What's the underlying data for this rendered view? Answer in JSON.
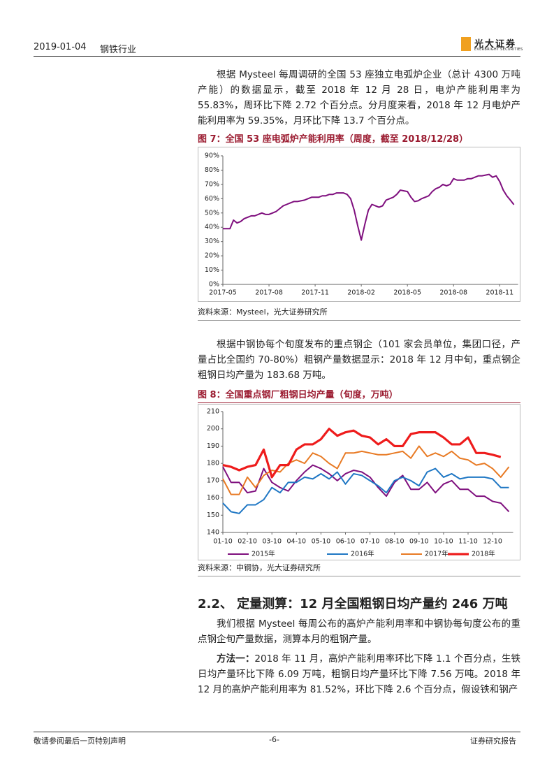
{
  "header": {
    "date": "2019-01-04",
    "industry": "钢铁行业",
    "brand": "光大证券",
    "brand_en": "EVERBRIGHT SECURITIES"
  },
  "paragraphs": [
    "根据 Mysteel 每周调研的全国 53 座独立电弧炉企业（总计 4300 万吨产能）的数据显示，截至 2018 年 12 月 28 日，电炉产能利用率为 55.83%，周环比下降 2.72 个百分点。分月度来看，2018 年 12 月电炉产能利用率为 59.35%，月环比下降 13.7 个百分点。",
    "根据中钢协每个旬度发布的重点钢企（101 家会员单位，集团口径，产量占比全国约 70-80%）粗钢产量数据显示：2018 年 12 月中旬，重点钢企粗钢日均产量为 183.68 万吨。",
    "我们根据 Mysteel 每周公布的高炉产能利用率和中钢协每旬度公布的重点钢企旬产量数据，测算本月的粗钢产量。"
  ],
  "section_heading": "2.2、 定量测算：12 月全国粗钢日均产量约 246 万吨",
  "method": {
    "lead": "方法一：",
    "text": "2018 年 11 月，高炉产能利用率环比下降 1.1 个百分点，生铁日均产量环比下降 6.09 万吨，粗钢日均产量环比下降 7.56 万吨。2018 年 12 月的高炉产能利用率为 81.52%，环比下降 2.6 个百分点，假设铁和钢产"
  },
  "chart_data": [
    {
      "type": "line",
      "title": "图 7：全国 53 座电弧炉产能利用率（周度，截至 2018/12/28）",
      "source": "资料来源：Mysteel，光大证券研究所",
      "color": "#7f0f7e",
      "categories": [
        "2017-05",
        null,
        null,
        null,
        null,
        null,
        null,
        null,
        null,
        null,
        null,
        null,
        null,
        "2017-08",
        null,
        null,
        null,
        null,
        null,
        null,
        null,
        null,
        null,
        null,
        null,
        null,
        "2017-11",
        null,
        null,
        null,
        null,
        null,
        null,
        null,
        null,
        null,
        null,
        null,
        null,
        "2018-02",
        null,
        null,
        null,
        null,
        null,
        null,
        null,
        null,
        null,
        null,
        null,
        null,
        "2018-05",
        null,
        null,
        null,
        null,
        null,
        null,
        null,
        null,
        null,
        null,
        null,
        null,
        "2018-08",
        null,
        null,
        null,
        null,
        null,
        null,
        null,
        null,
        null,
        null,
        null,
        null,
        "2018-11",
        null,
        null,
        null,
        null
      ],
      "values": [
        39,
        39,
        39,
        45,
        43,
        44,
        46,
        47,
        48,
        48,
        49,
        50,
        49,
        49,
        50,
        51,
        53,
        55,
        56,
        57,
        58,
        58,
        58.5,
        59,
        60,
        61,
        61,
        61,
        62,
        62,
        63,
        63,
        64,
        64,
        64,
        63,
        60,
        52,
        41,
        31,
        42,
        52,
        56,
        55,
        54,
        55,
        59,
        60,
        61,
        63,
        66,
        65.5,
        65,
        61,
        58,
        58.5,
        60,
        61,
        62,
        65,
        67,
        68,
        70,
        69,
        70,
        74,
        73,
        73,
        73,
        74,
        74,
        75,
        76,
        76,
        76.5,
        77,
        75,
        76,
        72,
        66,
        62,
        59,
        55.83
      ],
      "ylim": [
        0,
        90
      ],
      "yticks": [
        {
          "value": 0,
          "label": "0%"
        },
        {
          "value": 10,
          "label": "10%"
        },
        {
          "value": 20,
          "label": "20%"
        },
        {
          "value": 30,
          "label": "30%"
        },
        {
          "value": 40,
          "label": "40%"
        },
        {
          "value": 50,
          "label": "50%"
        },
        {
          "value": 60,
          "label": "60%"
        },
        {
          "value": 70,
          "label": "70%"
        },
        {
          "value": 80,
          "label": "80%"
        },
        {
          "value": 90,
          "label": "90%"
        }
      ],
      "grid": false
    },
    {
      "type": "line",
      "title": "图 8：全国重点钢厂粗钢日均产量（旬度，万吨）",
      "source": "资料来源：中钢协，光大证券研究所",
      "legend": "bottom",
      "categories": [
        "01-10",
        null,
        null,
        "02-10",
        null,
        null,
        "03-10",
        null,
        null,
        "04-10",
        null,
        null,
        "05-10",
        null,
        null,
        "06-10",
        null,
        null,
        "07-10",
        null,
        null,
        "08-10",
        null,
        null,
        "09-10",
        null,
        null,
        "10-10",
        null,
        null,
        "11-10",
        null,
        null,
        "12-10",
        null,
        null
      ],
      "series": [
        {
          "name": "2015年",
          "color": "#7f0f7e",
          "values": [
            178,
            169,
            169,
            163,
            164,
            177,
            169,
            166,
            164,
            170,
            175,
            179,
            177,
            174,
            170,
            174,
            176,
            175,
            172,
            166,
            161,
            169,
            173,
            165,
            165,
            169,
            163,
            168,
            170,
            165,
            165,
            161,
            161,
            158,
            157,
            152
          ]
        },
        {
          "name": "2016年",
          "color": "#1f77c4",
          "values": [
            157,
            152,
            151,
            156,
            156,
            159,
            166,
            163,
            169,
            169,
            172,
            171,
            174,
            171,
            175,
            168,
            174,
            173,
            170,
            167,
            163,
            170,
            172,
            170,
            167,
            175,
            177,
            172,
            174,
            171,
            172,
            172,
            172,
            171,
            166,
            166
          ]
        },
        {
          "name": "2017年",
          "color": "#e87a24",
          "values": [
            171,
            162,
            162,
            172,
            166,
            173,
            176,
            175,
            180,
            182,
            180,
            186,
            184,
            180,
            177,
            186,
            186,
            187,
            186,
            185,
            185,
            186,
            187,
            183,
            190,
            184,
            186,
            184,
            187,
            183,
            182,
            179,
            180,
            177,
            172,
            178
          ]
        },
        {
          "name": "2018年",
          "color": "#ee1c1c",
          "values": [
            179,
            178,
            176,
            178,
            179,
            188,
            172,
            179,
            179,
            188,
            191,
            191,
            194,
            200,
            196,
            198,
            199,
            196,
            195,
            191,
            194,
            190,
            190,
            197,
            198,
            198,
            198,
            195,
            191,
            191,
            195,
            186,
            186,
            185,
            183.68,
            null
          ]
        }
      ],
      "ylim": [
        140,
        210
      ],
      "yticks": [
        140,
        150,
        160,
        170,
        180,
        190,
        200,
        210
      ],
      "grid": false
    }
  ],
  "footer": {
    "left": "敬请参阅最后一页特别声明",
    "page": "-6-",
    "right": "证券研究报告"
  }
}
